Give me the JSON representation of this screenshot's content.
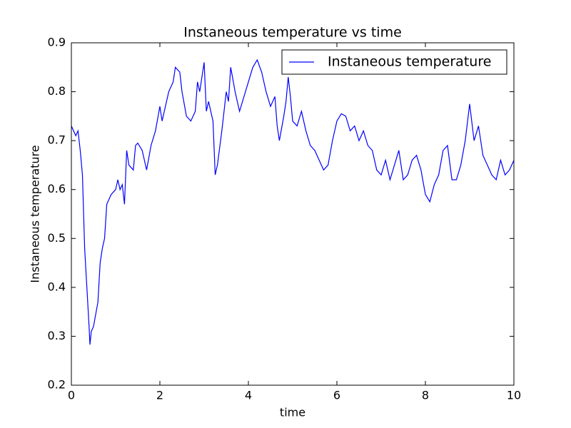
{
  "chart_data": {
    "type": "line",
    "title": "Instaneous temperature vs time",
    "x_label": "time",
    "y_label": "Instaneous temperature",
    "x": [
      0,
      0.1,
      0.15,
      0.2,
      0.25,
      0.3,
      0.35,
      0.4,
      0.42,
      0.45,
      0.5,
      0.6,
      0.65,
      0.7,
      0.75,
      0.8,
      0.85,
      0.9,
      1.0,
      1.05,
      1.1,
      1.15,
      1.2,
      1.25,
      1.3,
      1.4,
      1.45,
      1.5,
      1.6,
      1.7,
      1.8,
      1.9,
      2.0,
      2.05,
      2.1,
      2.2,
      2.3,
      2.35,
      2.45,
      2.5,
      2.6,
      2.7,
      2.8,
      2.85,
      2.9,
      3.0,
      3.05,
      3.1,
      3.2,
      3.25,
      3.3,
      3.4,
      3.5,
      3.55,
      3.6,
      3.7,
      3.8,
      3.9,
      4.0,
      4.1,
      4.2,
      4.3,
      4.4,
      4.5,
      4.6,
      4.65,
      4.7,
      4.8,
      4.85,
      4.9,
      4.95,
      5.0,
      5.1,
      5.2,
      5.3,
      5.4,
      5.5,
      5.6,
      5.7,
      5.8,
      5.9,
      6.0,
      6.1,
      6.2,
      6.3,
      6.4,
      6.5,
      6.6,
      6.7,
      6.8,
      6.9,
      7.0,
      7.1,
      7.2,
      7.3,
      7.4,
      7.5,
      7.6,
      7.7,
      7.8,
      7.9,
      8.0,
      8.1,
      8.2,
      8.3,
      8.4,
      8.5,
      8.6,
      8.7,
      8.8,
      8.9,
      9.0,
      9.1,
      9.2,
      9.3,
      9.4,
      9.5,
      9.6,
      9.7,
      9.8,
      9.9,
      10.0
    ],
    "series": [
      {
        "name": "Instaneous temperature",
        "color": "#0000ff",
        "values": [
          0.73,
          0.71,
          0.72,
          0.68,
          0.63,
          0.48,
          0.4,
          0.32,
          0.283,
          0.31,
          0.32,
          0.37,
          0.45,
          0.48,
          0.5,
          0.57,
          0.58,
          0.59,
          0.6,
          0.62,
          0.6,
          0.61,
          0.57,
          0.68,
          0.65,
          0.64,
          0.69,
          0.695,
          0.68,
          0.64,
          0.69,
          0.72,
          0.77,
          0.74,
          0.76,
          0.8,
          0.82,
          0.85,
          0.84,
          0.8,
          0.75,
          0.74,
          0.76,
          0.82,
          0.8,
          0.86,
          0.76,
          0.78,
          0.74,
          0.63,
          0.65,
          0.72,
          0.8,
          0.78,
          0.85,
          0.8,
          0.76,
          0.79,
          0.82,
          0.85,
          0.865,
          0.84,
          0.8,
          0.77,
          0.79,
          0.73,
          0.7,
          0.75,
          0.78,
          0.83,
          0.79,
          0.74,
          0.73,
          0.76,
          0.72,
          0.69,
          0.68,
          0.66,
          0.64,
          0.65,
          0.7,
          0.74,
          0.755,
          0.75,
          0.72,
          0.73,
          0.7,
          0.72,
          0.69,
          0.68,
          0.64,
          0.63,
          0.66,
          0.62,
          0.65,
          0.68,
          0.62,
          0.63,
          0.66,
          0.67,
          0.64,
          0.59,
          0.575,
          0.61,
          0.63,
          0.68,
          0.69,
          0.62,
          0.62,
          0.65,
          0.7,
          0.775,
          0.7,
          0.73,
          0.67,
          0.65,
          0.63,
          0.62,
          0.66,
          0.63,
          0.64,
          0.66
        ]
      }
    ],
    "xlim": [
      0,
      10
    ],
    "xticks": [
      0,
      2,
      4,
      6,
      8,
      10
    ],
    "ylim": [
      0.2,
      0.9
    ],
    "yticks": [
      0.2,
      0.3,
      0.4,
      0.5,
      0.6,
      0.7,
      0.8,
      0.9
    ],
    "legend": "upper right"
  }
}
